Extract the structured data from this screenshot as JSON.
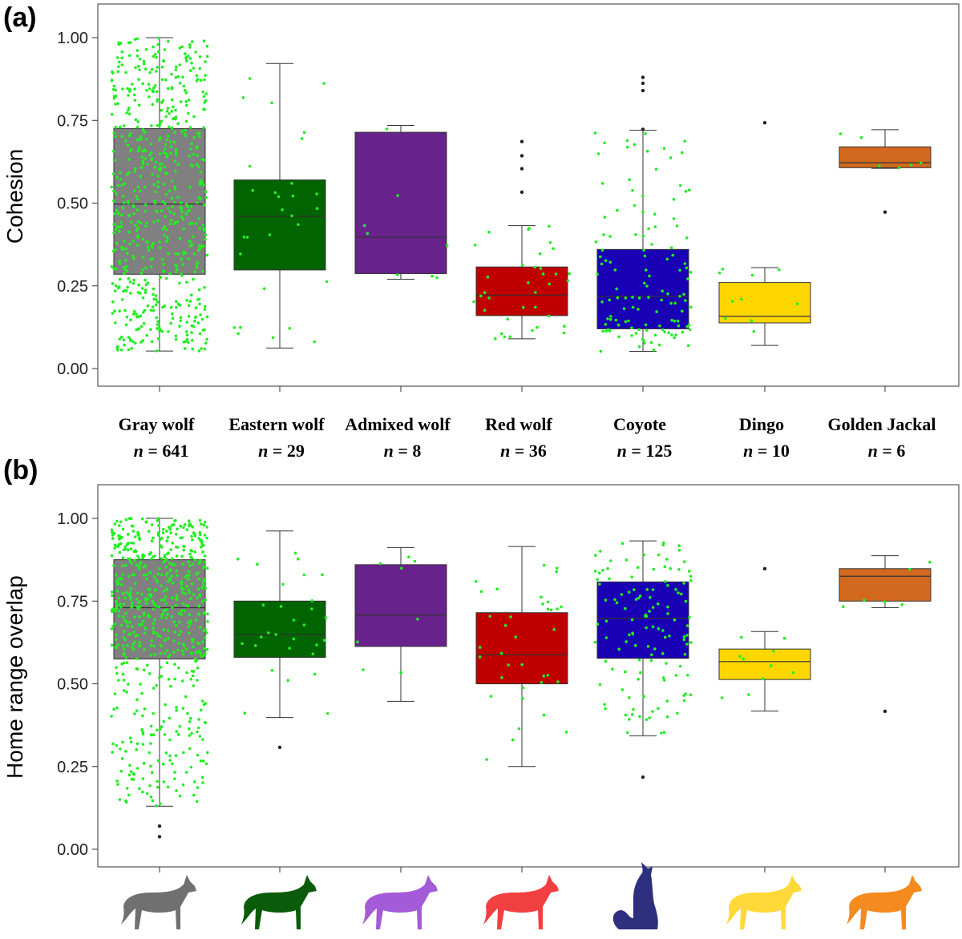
{
  "chart_data": [
    {
      "type": "box",
      "panel": "(a)",
      "ylabel": "Cohesion",
      "xlabel": "",
      "ylim": [
        -0.05,
        1.1
      ],
      "yticks": [
        "0.00",
        "0.25",
        "0.50",
        "0.75",
        "1.00"
      ],
      "categories": [
        "Gray wolf",
        "Eastern wolf",
        "Admixed wolf",
        "Red wolf",
        "Coyote",
        "Dingo",
        "Golden Jackal"
      ],
      "n_values": [
        "641",
        "29",
        "8",
        "36",
        "125",
        "10",
        "6"
      ],
      "colors": [
        "#808080",
        "#006400",
        "#68228B",
        "#C00000",
        "#1A00B4",
        "#FFD700",
        "#D2691E"
      ],
      "jitter_color": "#22EE22",
      "boxes": [
        {
          "min": 0.053,
          "q1": 0.285,
          "median": 0.497,
          "q3": 0.725,
          "max": 1.0,
          "outliers": []
        },
        {
          "min": 0.062,
          "q1": 0.298,
          "median": 0.46,
          "q3": 0.57,
          "max": 0.922,
          "outliers": []
        },
        {
          "min": 0.27,
          "q1": 0.287,
          "median": 0.397,
          "q3": 0.714,
          "max": 0.735,
          "outliers": []
        },
        {
          "min": 0.09,
          "q1": 0.16,
          "median": 0.222,
          "q3": 0.307,
          "max": 0.432,
          "outliers": [
            0.533,
            0.604,
            0.643,
            0.686
          ]
        },
        {
          "min": 0.052,
          "q1": 0.12,
          "median": 0.218,
          "q3": 0.36,
          "max": 0.72,
          "outliers": [
            0.723,
            0.84,
            0.862,
            0.88
          ]
        },
        {
          "min": 0.07,
          "q1": 0.138,
          "median": 0.158,
          "q3": 0.26,
          "max": 0.305,
          "outliers": [
            0.743
          ]
        },
        {
          "min": 0.605,
          "q1": 0.607,
          "median": 0.622,
          "q3": 0.67,
          "max": 0.722,
          "outliers": [
            0.473
          ]
        }
      ]
    },
    {
      "type": "box",
      "panel": "(b)",
      "ylabel": "Home range overlap",
      "xlabel": "",
      "ylim": [
        -0.05,
        1.1
      ],
      "yticks": [
        "0.00",
        "0.25",
        "0.50",
        "0.75",
        "1.00"
      ],
      "categories": [
        "Gray wolf",
        "Eastern wolf",
        "Admixed wolf",
        "Red wolf",
        "Coyote",
        "Dingo",
        "Golden Jackal"
      ],
      "colors": [
        "#808080",
        "#006400",
        "#68228B",
        "#C00000",
        "#1A00B4",
        "#FFD700",
        "#D2691E"
      ],
      "jitter_color": "#22EE22",
      "boxes": [
        {
          "min": 0.13,
          "q1": 0.575,
          "median": 0.73,
          "q3": 0.875,
          "max": 1.0,
          "outliers": [
            0.038,
            0.07
          ]
        },
        {
          "min": 0.398,
          "q1": 0.58,
          "median": 0.648,
          "q3": 0.75,
          "max": 0.962,
          "outliers": [
            0.308
          ]
        },
        {
          "min": 0.447,
          "q1": 0.613,
          "median": 0.708,
          "q3": 0.86,
          "max": 0.912,
          "outliers": []
        },
        {
          "min": 0.25,
          "q1": 0.5,
          "median": 0.588,
          "q3": 0.715,
          "max": 0.915,
          "outliers": []
        },
        {
          "min": 0.343,
          "q1": 0.577,
          "median": 0.698,
          "q3": 0.808,
          "max": 0.932,
          "outliers": [
            0.218
          ]
        },
        {
          "min": 0.418,
          "q1": 0.513,
          "median": 0.567,
          "q3": 0.605,
          "max": 0.658,
          "outliers": [
            0.848
          ]
        },
        {
          "min": 0.73,
          "q1": 0.75,
          "median": 0.825,
          "q3": 0.848,
          "max": 0.887,
          "outliers": [
            0.417
          ]
        }
      ]
    }
  ],
  "silhouettes": {
    "icons": [
      "gray-wolf-silhouette-icon",
      "eastern-wolf-silhouette-icon",
      "admixed-wolf-silhouette-icon",
      "red-wolf-silhouette-icon",
      "coyote-howling-silhouette-icon",
      "dingo-silhouette-icon",
      "golden-jackal-silhouette-icon"
    ],
    "colors": [
      "#707070",
      "#0A5C0A",
      "#A35BD8",
      "#F24040",
      "#2E2F7E",
      "#FFD93A",
      "#F58A1F"
    ]
  }
}
